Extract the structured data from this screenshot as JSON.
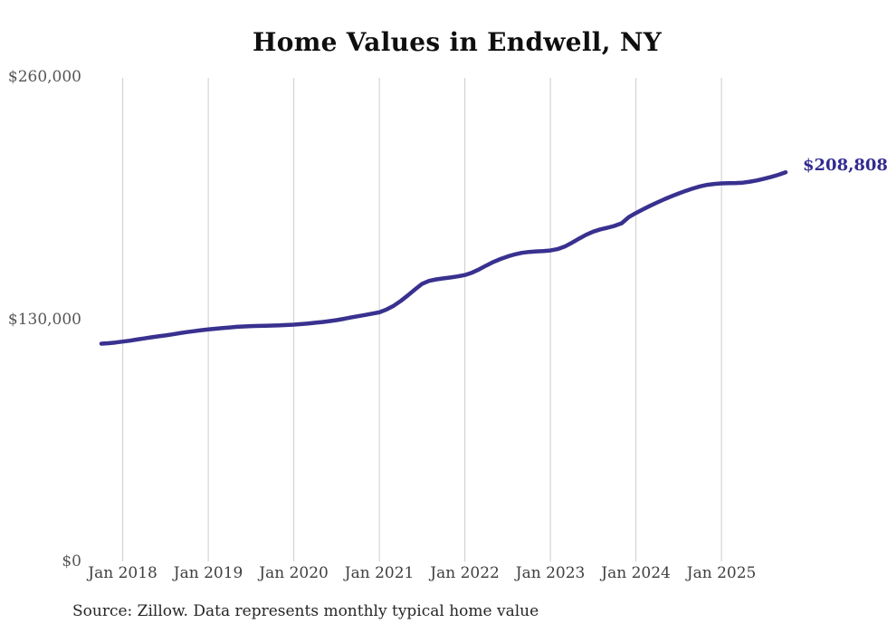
{
  "title": "Home Values in Endwell, NY",
  "source_note": "Source: Zillow. Data represents monthly typical home value",
  "colors": {
    "line": "#39318f",
    "end_label": "#322b90",
    "grid": "#cccccc",
    "title": "#0f0f0f",
    "y_axis_text": "#565656",
    "x_axis_text": "#3f3f3f",
    "source_text": "#262626",
    "background": "#ffffff"
  },
  "chart_data": {
    "type": "line",
    "title": "Home Values in Endwell, NY",
    "series_name": "Typical home value",
    "unit": "USD",
    "x_interval": "monthly",
    "x_start_month": "Oct 2017",
    "x_end_month": "Oct 2025",
    "x_tick_labels": [
      "Jan 2018",
      "Jan 2019",
      "Jan 2020",
      "Jan 2021",
      "Jan 2022",
      "Jan 2023",
      "Jan 2024",
      "Jan 2025"
    ],
    "x_tick_indices": [
      3,
      15,
      27,
      39,
      51,
      63,
      75,
      87
    ],
    "y_tick_labels": [
      "$0",
      "$130,000",
      "$260,000"
    ],
    "y_tick_values": [
      0,
      130000,
      260000
    ],
    "ylim": [
      0,
      260000
    ],
    "grid": "vertical-only",
    "legend": "none",
    "end_label": "$208,808",
    "latest_value": 208808,
    "values": [
      116900,
      117100,
      117500,
      118000,
      118500,
      119100,
      119700,
      120300,
      120800,
      121300,
      121900,
      122500,
      123100,
      123600,
      124100,
      124500,
      124900,
      125300,
      125600,
      125900,
      126100,
      126300,
      126400,
      126500,
      126600,
      126700,
      126900,
      127100,
      127400,
      127700,
      128100,
      128500,
      129000,
      129500,
      130200,
      130900,
      131600,
      132300,
      133000,
      133700,
      135200,
      137200,
      139800,
      142800,
      146000,
      149000,
      150600,
      151400,
      151900,
      152400,
      153000,
      153700,
      155000,
      156800,
      158800,
      160700,
      162300,
      163700,
      164800,
      165600,
      166100,
      166400,
      166600,
      166900,
      167600,
      169000,
      171000,
      173200,
      175300,
      177000,
      178200,
      179100,
      180100,
      181500,
      184800,
      187000,
      189000,
      190900,
      192700,
      194400,
      196000,
      197500,
      198900,
      200200,
      201300,
      202100,
      202600,
      202900,
      203000,
      203100,
      203300,
      203800,
      204500,
      205400,
      206400,
      207500,
      208808
    ]
  }
}
